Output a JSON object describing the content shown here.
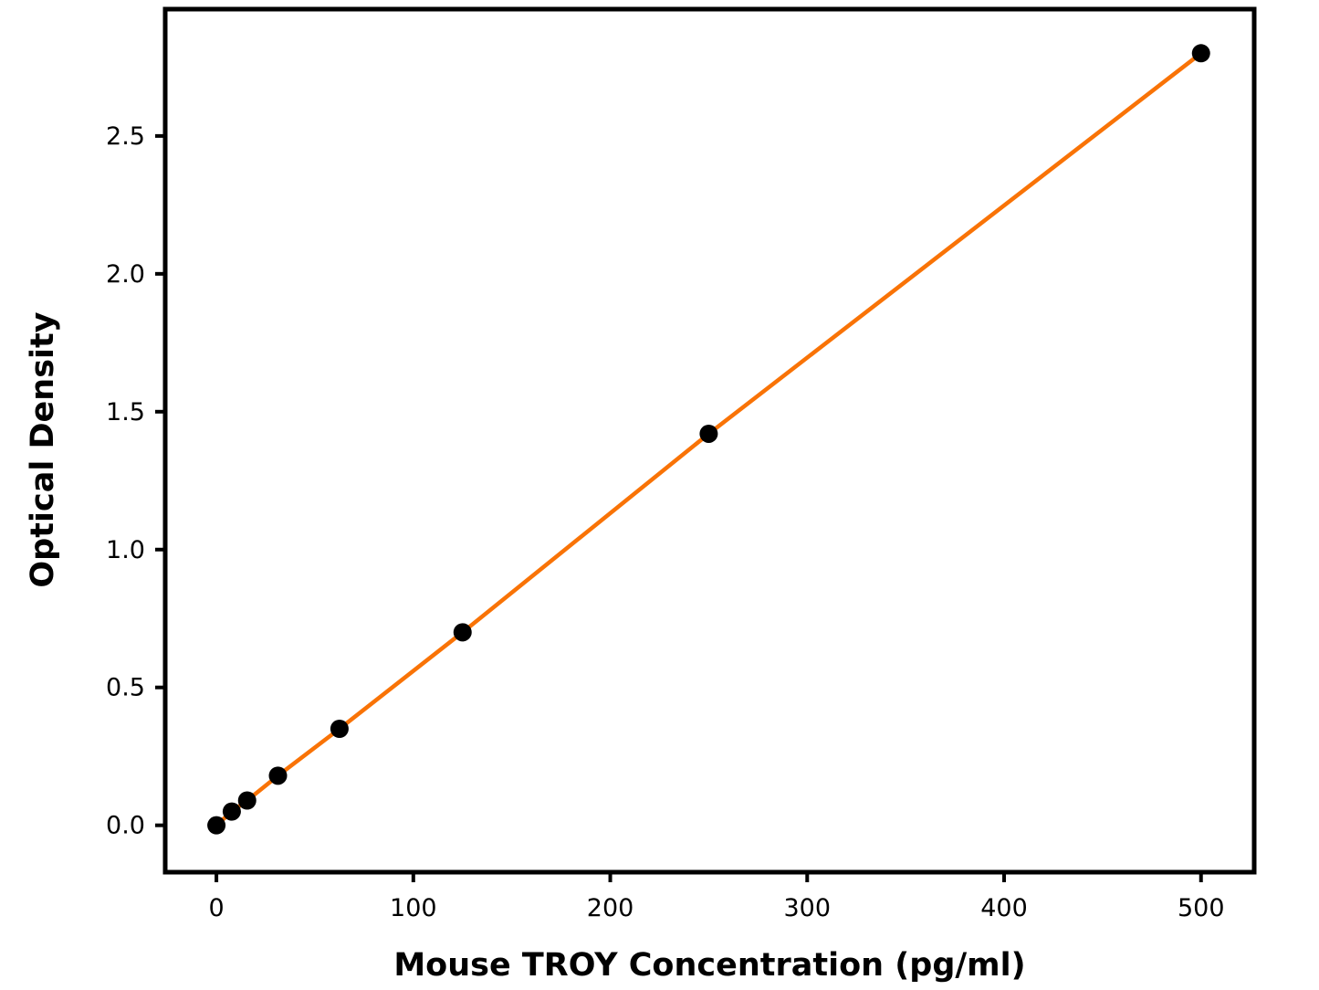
{
  "figure": {
    "background": "#ffffff",
    "axis_color": "#000000"
  },
  "chart_data": {
    "type": "scatter",
    "title": "",
    "xlabel": "Mouse TROY Concentration (pg/ml)",
    "ylabel": "Optical Density",
    "points": [
      {
        "x": 0,
        "y": 0.0
      },
      {
        "x": 7.8,
        "y": 0.05
      },
      {
        "x": 15.6,
        "y": 0.09
      },
      {
        "x": 31.25,
        "y": 0.18
      },
      {
        "x": 62.5,
        "y": 0.35
      },
      {
        "x": 125,
        "y": 0.7
      },
      {
        "x": 250,
        "y": 1.42
      },
      {
        "x": 500,
        "y": 2.8
      }
    ],
    "line": {
      "kind": "linear-fit-through-points",
      "color": "#F97306",
      "width": 4.5
    },
    "marker": {
      "shape": "circle",
      "color": "#000000",
      "radius": 10
    },
    "xlim": [
      -26,
      527
    ],
    "ylim": [
      -0.17,
      2.96
    ],
    "xticks": [
      0,
      100,
      200,
      300,
      400,
      500
    ],
    "xtick_labels": [
      "0",
      "100",
      "200",
      "300",
      "400",
      "500"
    ],
    "yticks": [
      0.0,
      0.5,
      1.0,
      1.5,
      2.0,
      2.5
    ],
    "ytick_labels": [
      "0.0",
      "0.5",
      "1.0",
      "1.5",
      "2.0",
      "2.5"
    ],
    "grid": false,
    "legend": null
  }
}
